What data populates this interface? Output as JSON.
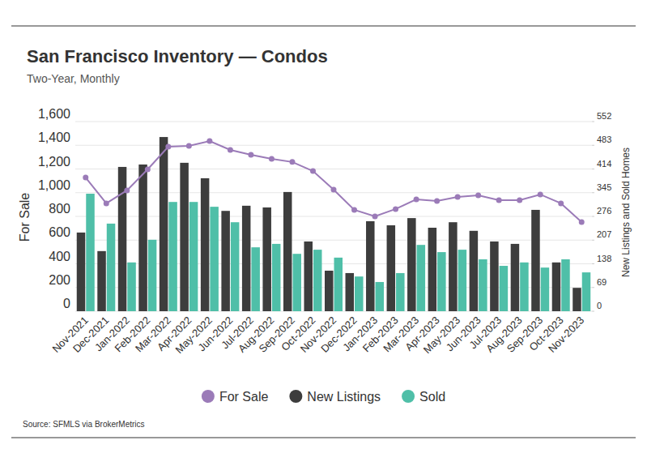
{
  "chart_data": {
    "type": "bar",
    "title": "San Francisco Inventory — Condos",
    "subtitle": "Two-Year, Monthly",
    "y_label": "For Sale",
    "y2_label": "New Listings and Sold Homes",
    "source": "Source:  SFMLS via BrokerMetrics",
    "categories": [
      "Nov-2021",
      "Dec-2021",
      "Jan-2022",
      "Feb-2022",
      "Mar-2022",
      "Apr-2022",
      "May-2022",
      "Jun-2022",
      "Jul-2022",
      "Aug-2022",
      "Sep-2022",
      "Oct-2022",
      "Nov-2022",
      "Dec-2022",
      "Jan-2023",
      "Feb-2023",
      "Mar-2023",
      "Apr-2023",
      "May-2023",
      "Jun-2023",
      "Jul-2023",
      "Aug-2023",
      "Sep-2023",
      "Oct-2023",
      "Nov-2023"
    ],
    "series": [
      {
        "name": "For Sale",
        "type": "line",
        "color": "#9b7bb8",
        "marker": "circle",
        "values": [
          1128,
          910,
          1019,
          1197,
          1388,
          1395,
          1436,
          1361,
          1320,
          1286,
          1259,
          1183,
          1026,
          855,
          800,
          862,
          944,
          930,
          964,
          978,
          937,
          937,
          985,
          910,
          752
        ]
      },
      {
        "name": "New Listings",
        "type": "bar",
        "color": "#3d3d3d",
        "axis": "y2",
        "values": [
          229,
          175,
          420,
          427,
          507,
          432,
          387,
          292,
          307,
          302,
          347,
          203,
          118,
          111,
          262,
          250,
          271,
          243,
          259,
          234,
          203,
          196,
          295,
          142,
          68
        ]
      },
      {
        "name": "Sold",
        "type": "bar",
        "color": "#4fbfa8",
        "axis": "y2",
        "values": [
          342,
          255,
          142,
          208,
          318,
          318,
          304,
          259,
          186,
          196,
          167,
          179,
          156,
          101,
          85,
          111,
          193,
          172,
          179,
          151,
          132,
          142,
          127,
          151,
          113
        ]
      }
    ],
    "ylim": [
      0,
      1600
    ],
    "yticks": [
      0,
      200,
      400,
      600,
      800,
      {
        "value": 1000,
        "label": "1,000"
      },
      {
        "value": 1200,
        "label": "1,200"
      },
      {
        "value": 1400,
        "label": "1,400"
      },
      {
        "value": 1600,
        "label": "1,600"
      }
    ],
    "y2lim": [
      0,
      552
    ],
    "y2ticks": [
      0,
      69,
      138,
      207,
      276,
      345,
      414,
      483,
      552
    ],
    "grid": true,
    "legend": "bottom"
  }
}
